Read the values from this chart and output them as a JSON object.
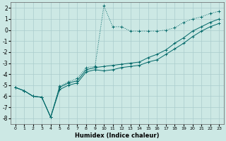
{
  "xlabel": "Humidex (Indice chaleur)",
  "bg_color": "#cce8e4",
  "grid_color": "#aacccc",
  "line_color": "#006868",
  "xlim": [
    -0.5,
    23.5
  ],
  "ylim": [
    -8.5,
    2.5
  ],
  "xticks": [
    0,
    1,
    2,
    3,
    4,
    5,
    6,
    7,
    8,
    9,
    10,
    11,
    12,
    13,
    14,
    15,
    16,
    17,
    18,
    19,
    20,
    21,
    22,
    23
  ],
  "yticks": [
    -8,
    -7,
    -6,
    -5,
    -4,
    -3,
    -2,
    -1,
    0,
    1,
    2
  ],
  "series1_x": [
    0,
    1,
    2,
    3,
    4,
    5,
    6,
    7,
    8,
    9,
    10,
    11,
    12,
    13,
    14,
    15,
    16,
    17,
    18,
    19,
    20,
    21,
    22,
    23
  ],
  "series1_y": [
    -5.2,
    -5.5,
    -6.0,
    -6.1,
    -7.9,
    -5.1,
    -4.7,
    -4.4,
    -3.4,
    -3.3,
    2.2,
    0.3,
    0.3,
    -0.1,
    -0.1,
    -0.1,
    -0.1,
    0.0,
    0.2,
    0.7,
    1.0,
    1.2,
    1.5,
    1.7
  ],
  "series2_x": [
    0,
    1,
    2,
    3,
    4,
    5,
    6,
    7,
    8,
    9,
    10,
    11,
    12,
    13,
    14,
    15,
    16,
    17,
    18,
    19,
    20,
    21,
    22,
    23
  ],
  "series2_y": [
    -5.2,
    -5.5,
    -6.0,
    -6.1,
    -7.9,
    -5.2,
    -4.8,
    -4.6,
    -3.6,
    -3.4,
    -3.3,
    -3.2,
    -3.1,
    -3.0,
    -2.9,
    -2.5,
    -2.2,
    -1.8,
    -1.2,
    -0.7,
    -0.1,
    0.3,
    0.7,
    1.0
  ],
  "series3_x": [
    0,
    1,
    2,
    3,
    4,
    5,
    6,
    7,
    8,
    9,
    10,
    11,
    12,
    13,
    14,
    15,
    16,
    17,
    18,
    19,
    20,
    21,
    22,
    23
  ],
  "series3_y": [
    -5.2,
    -5.5,
    -6.0,
    -6.1,
    -7.9,
    -5.4,
    -5.0,
    -4.8,
    -3.8,
    -3.6,
    -3.7,
    -3.6,
    -3.4,
    -3.3,
    -3.2,
    -2.9,
    -2.7,
    -2.2,
    -1.7,
    -1.2,
    -0.6,
    -0.1,
    0.3,
    0.6
  ]
}
